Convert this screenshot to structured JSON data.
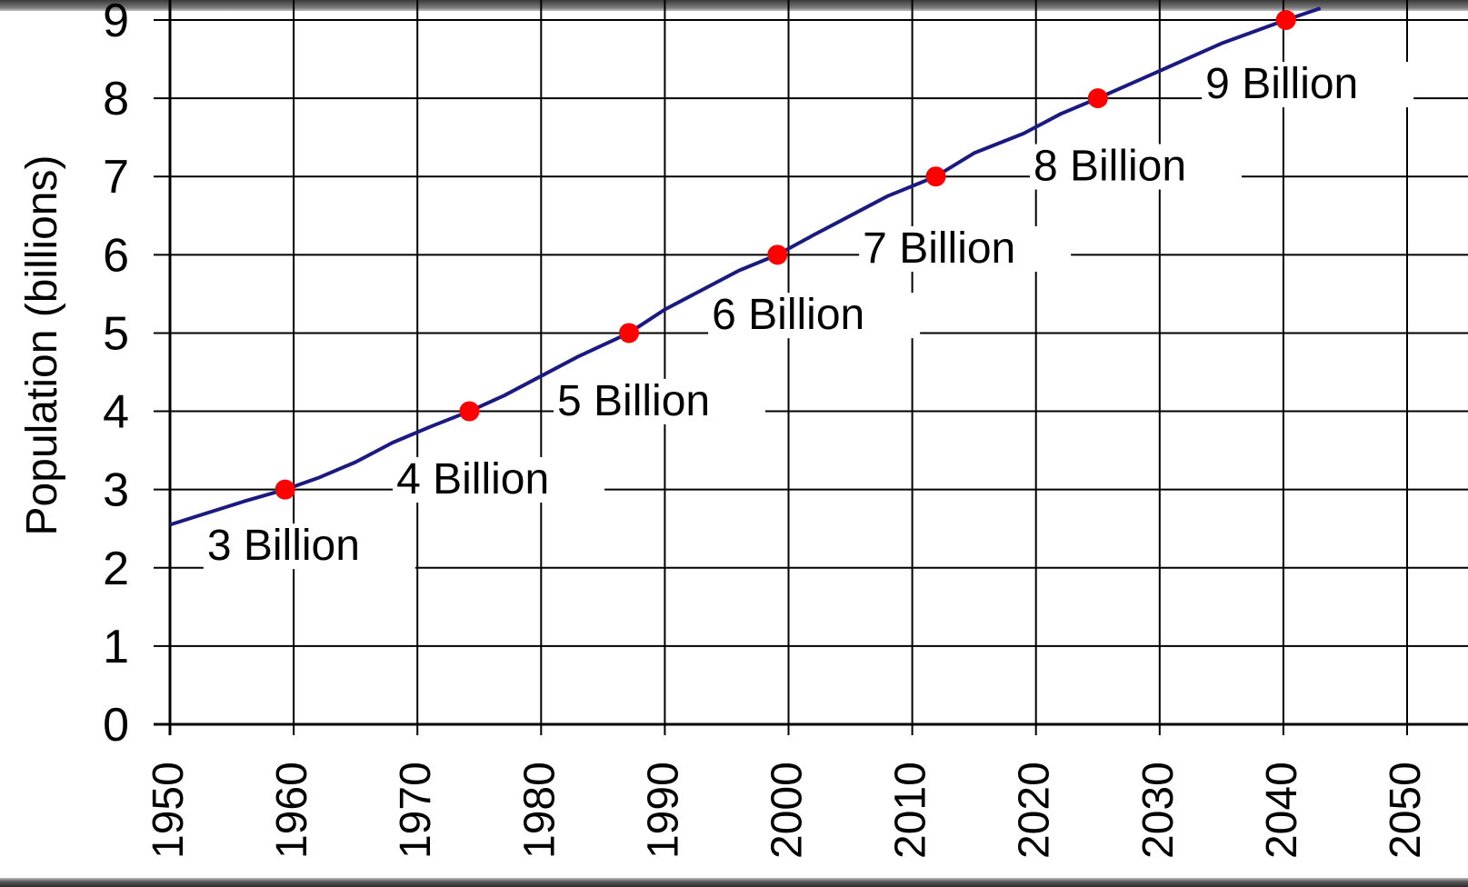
{
  "chart_data": {
    "type": "line",
    "title": "",
    "xlabel": "",
    "ylabel": "Population (billions)",
    "xlim": [
      1950,
      2050
    ],
    "ylim": [
      0,
      9
    ],
    "grid": true,
    "x_ticks": [
      1950,
      1960,
      1970,
      1980,
      1990,
      2000,
      2010,
      2020,
      2030,
      2040,
      2050
    ],
    "y_ticks": [
      0,
      1,
      2,
      3,
      4,
      5,
      6,
      7,
      8,
      9
    ],
    "series": [
      {
        "color": "#1a1a80",
        "points": [
          [
            1950,
            2.55
          ],
          [
            1953,
            2.7
          ],
          [
            1956,
            2.85
          ],
          [
            1959.3,
            3.0
          ],
          [
            1962,
            3.15
          ],
          [
            1965,
            3.35
          ],
          [
            1968,
            3.6
          ],
          [
            1971,
            3.8
          ],
          [
            1974.2,
            4.0
          ],
          [
            1977,
            4.2
          ],
          [
            1980,
            4.45
          ],
          [
            1983,
            4.7
          ],
          [
            1987.1,
            5.0
          ],
          [
            1990,
            5.3
          ],
          [
            1993,
            5.55
          ],
          [
            1996,
            5.8
          ],
          [
            1999.1,
            6.0
          ],
          [
            2002,
            6.25
          ],
          [
            2005,
            6.5
          ],
          [
            2008,
            6.75
          ],
          [
            2011.9,
            7.0
          ],
          [
            2015,
            7.3
          ],
          [
            2019,
            7.55
          ],
          [
            2022,
            7.8
          ],
          [
            2025,
            8.0
          ],
          [
            2030,
            8.35
          ],
          [
            2035,
            8.7
          ],
          [
            2040.2,
            9.0
          ],
          [
            2043,
            9.15
          ]
        ]
      }
    ],
    "milestones": [
      {
        "x": 1959.3,
        "y": 3,
        "label": "3 Billion",
        "label_x": 1953,
        "label_y": 2.1
      },
      {
        "x": 1974.2,
        "y": 4,
        "label": "4 Billion",
        "label_x": 1968.3,
        "label_y": 2.95
      },
      {
        "x": 1987.1,
        "y": 5,
        "label": "5 Billion",
        "label_x": 1981.3,
        "label_y": 3.95
      },
      {
        "x": 1999.1,
        "y": 6,
        "label": "6 Billion",
        "label_x": 1993.8,
        "label_y": 5.05
      },
      {
        "x": 2011.9,
        "y": 7,
        "label": "7 Billion",
        "label_x": 2006,
        "label_y": 5.9
      },
      {
        "x": 2025,
        "y": 8,
        "label": "8 Billion",
        "label_x": 2019.8,
        "label_y": 6.95
      },
      {
        "x": 2040.2,
        "y": 9,
        "label": "9 Billion",
        "label_x": 2033.7,
        "label_y": 8.0
      }
    ],
    "marker_color": "#ff0000"
  }
}
